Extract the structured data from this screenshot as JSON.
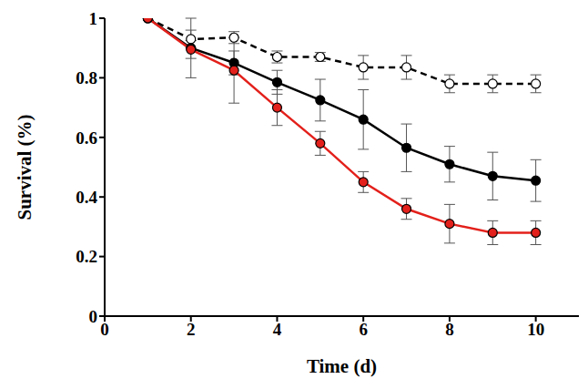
{
  "chart_data": {
    "type": "line",
    "x_label": "Time (d)",
    "y_label": "Survival (%)",
    "x": [
      1,
      2,
      3,
      4,
      5,
      6,
      7,
      8,
      9,
      10
    ],
    "xlim": [
      0,
      11
    ],
    "xticks": [
      0,
      2,
      4,
      6,
      8,
      10
    ],
    "ylim": [
      0,
      1
    ],
    "yticks": [
      0,
      0.2,
      0.4,
      0.6,
      0.8,
      1
    ],
    "grid": false,
    "series": [
      {
        "color": "#000000",
        "marker": "open_circle",
        "line_style": "dashed",
        "values": [
          1,
          0.93,
          0.935,
          0.87,
          0.87,
          0.835,
          0.835,
          0.78,
          0.78,
          0.78
        ],
        "errors": [
          0,
          0.03,
          0.02,
          0.02,
          0.015,
          0.04,
          0.04,
          0.03,
          0.03,
          0.03
        ]
      },
      {
        "color": "#000000",
        "marker": "circle",
        "line_style": "solid",
        "values": [
          1,
          0.9,
          0.85,
          0.785,
          0.725,
          0.66,
          0.565,
          0.51,
          0.47,
          0.455
        ],
        "errors": [
          0,
          0.1,
          0.04,
          0.04,
          0.07,
          0.1,
          0.08,
          0.06,
          0.08,
          0.07
        ]
      },
      {
        "color": "#e3201b",
        "marker": "circle",
        "line_style": "solid",
        "values": [
          1,
          0.895,
          0.825,
          0.7,
          0.58,
          0.45,
          0.36,
          0.31,
          0.28,
          0.28
        ],
        "errors": [
          0,
          0.03,
          0.11,
          0.06,
          0.04,
          0.035,
          0.035,
          0.065,
          0.04,
          0.04
        ]
      }
    ]
  }
}
